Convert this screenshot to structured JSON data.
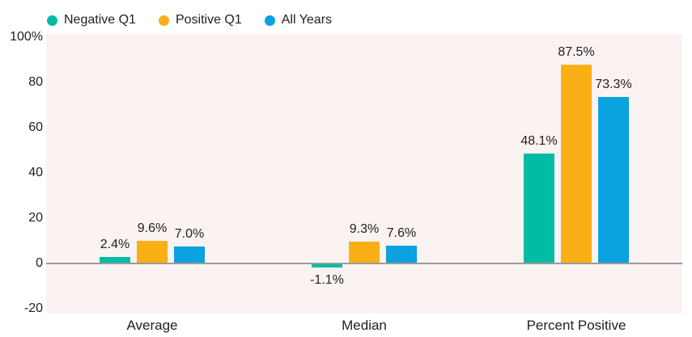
{
  "chart_data": {
    "type": "bar",
    "title": "",
    "categories": [
      "Average",
      "Median",
      "Percent Positive"
    ],
    "series": [
      {
        "name": "Negative Q1",
        "color": "#00BCA4",
        "values": [
          2.4,
          -1.1,
          48.1
        ],
        "value_labels": [
          "2.4%",
          "-1.1%",
          "48.1%"
        ]
      },
      {
        "name": "Positive Q1",
        "color": "#FBAF17",
        "values": [
          9.6,
          9.3,
          87.5
        ],
        "value_labels": [
          "9.6%",
          "9.3%",
          "87.5%"
        ]
      },
      {
        "name": "All Years",
        "color": "#0AA2DF",
        "values": [
          7.0,
          7.6,
          73.3
        ],
        "value_labels": [
          "7.0%",
          "7.6%",
          "73.3%"
        ]
      }
    ],
    "y_axis": {
      "ticks": [
        {
          "value": 100,
          "label": "100%"
        },
        {
          "value": 80,
          "label": "80"
        },
        {
          "value": 60,
          "label": "60"
        },
        {
          "value": 40,
          "label": "40"
        },
        {
          "value": 20,
          "label": "20"
        },
        {
          "value": 0,
          "label": "0"
        },
        {
          "value": -20,
          "label": "-20"
        }
      ],
      "ylim": [
        -22,
        101.5
      ]
    },
    "legend_position": "top",
    "grid": false
  },
  "colors": {
    "plot_background": "#FAF3F2",
    "page_background": "#FFFFFF",
    "axis_line": "#9B9B9B",
    "text": "#212121"
  }
}
